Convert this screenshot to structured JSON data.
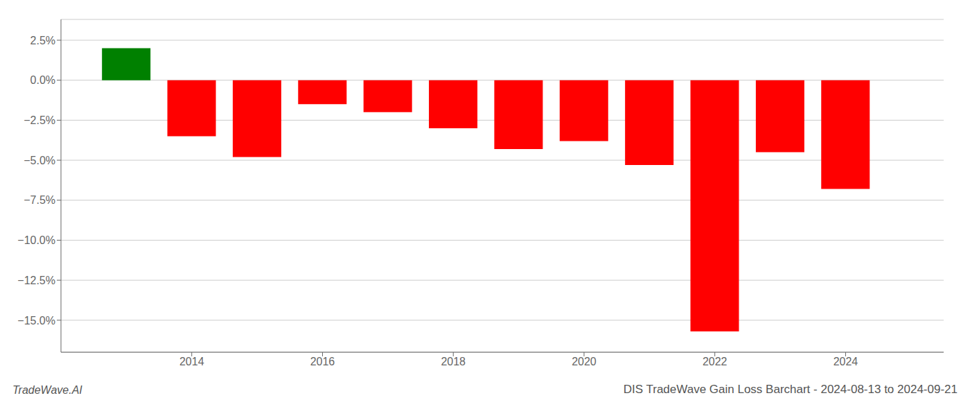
{
  "chart_data": {
    "type": "bar",
    "title": "DIS TradeWave Gain Loss Barchart - 2024-08-13 to 2024-09-21",
    "annotations": [
      "TradeWave.AI"
    ],
    "x": [
      2013,
      2014,
      2015,
      2016,
      2017,
      2018,
      2019,
      2020,
      2021,
      2022,
      2023,
      2024
    ],
    "values": [
      2.0,
      -3.5,
      -4.8,
      -1.5,
      -2.0,
      -3.0,
      -4.3,
      -3.8,
      -5.3,
      -15.7,
      -4.5,
      -6.8
    ],
    "colors": [
      "#008000",
      "#ff0000",
      "#ff0000",
      "#ff0000",
      "#ff0000",
      "#ff0000",
      "#ff0000",
      "#ff0000",
      "#ff0000",
      "#ff0000",
      "#ff0000",
      "#ff0000"
    ],
    "xlim": [
      2012.0,
      2025.5
    ],
    "xticks": [
      2014,
      2016,
      2018,
      2020,
      2022,
      2024
    ],
    "ylim": [
      -17.0,
      3.8
    ],
    "yticks": [
      {
        "value": 2.5,
        "label": "2.5%"
      },
      {
        "value": 0.0,
        "label": "0.0%"
      },
      {
        "value": -2.5,
        "label": "−2.5%"
      },
      {
        "value": -5.0,
        "label": "−5.0%"
      },
      {
        "value": -7.5,
        "label": "−7.5%"
      },
      {
        "value": -10.0,
        "label": "−10.0%"
      },
      {
        "value": -12.5,
        "label": "−12.5%"
      },
      {
        "value": -15.0,
        "label": "−15.0%"
      }
    ],
    "grid": true
  }
}
